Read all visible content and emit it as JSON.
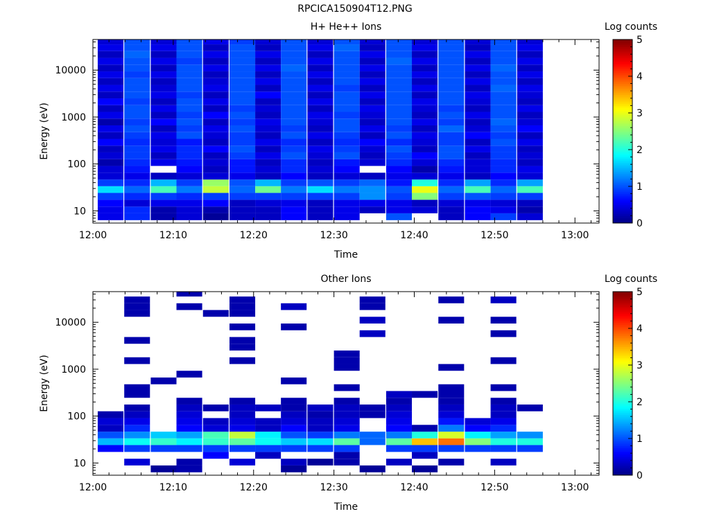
{
  "figure_title": "RPCICA150904T12.PNG",
  "colorbar": {
    "label": "Log counts",
    "ticks": [
      0,
      1,
      2,
      3,
      4,
      5
    ],
    "range": [
      0,
      5
    ]
  },
  "chart_data": [
    {
      "type": "heatmap",
      "title": "H+ He++ Ions",
      "xlabel": "Time",
      "ylabel": "Energy (eV)",
      "x_ticks": [
        "12:00",
        "12:10",
        "12:20",
        "12:30",
        "12:40",
        "12:50",
        "13:00"
      ],
      "xlim_minutes": [
        0,
        63
      ],
      "y_scale": "log",
      "y_ticks": [
        "10",
        "100",
        "1000",
        "10000"
      ],
      "ylim": [
        5.5,
        45000
      ],
      "colorbar_label": "Log counts",
      "time_bins_minutes": [
        2.2,
        5.5,
        8.8,
        12.0,
        15.3,
        18.6,
        21.8,
        25.0,
        28.3,
        31.6,
        34.8,
        38.1,
        41.3,
        44.6,
        47.9,
        51.1,
        54.4
      ],
      "bin_width_minutes": 3.2,
      "energy_bins_eV": [
        7.5,
        10.5,
        14.5,
        20.5,
        28.5,
        39.5,
        55,
        77,
        107,
        150,
        208,
        290,
        404,
        563,
        784,
        1092,
        1520,
        2118,
        2950,
        4108,
        5722,
        7970,
        11100,
        15460,
        21530,
        29990,
        41770
      ],
      "log_counts": [
        [
          0.5,
          0.8,
          0.2,
          0.4,
          0.1,
          0.3,
          0.3,
          0.6,
          0.3,
          0.5,
          null,
          1.0,
          null,
          0.3,
          0.6,
          0.9,
          0.4
        ],
        [
          0.5,
          0.8,
          0.2,
          0.4,
          0.2,
          0.3,
          0.3,
          0.6,
          0.3,
          0.5,
          0.3,
          0.5,
          0.4,
          0.3,
          0.6,
          0.5,
          0.2
        ],
        [
          0.6,
          0.4,
          0.5,
          0.5,
          0.6,
          0.3,
          0.4,
          0.5,
          0.3,
          0.5,
          0.5,
          0.5,
          0.3,
          0.4,
          0.5,
          0.4,
          0.3
        ],
        [
          0.9,
          0.8,
          0.9,
          0.8,
          0.9,
          0.9,
          0.9,
          0.9,
          0.9,
          0.9,
          1.3,
          0.9,
          2.5,
          0.9,
          1.0,
          0.9,
          0.9
        ],
        [
          1.7,
          1.1,
          2.2,
          1.2,
          2.8,
          1.1,
          2.4,
          1.2,
          1.7,
          1.2,
          1.3,
          1.0,
          3.0,
          1.1,
          2.2,
          1.1,
          2.2
        ],
        [
          0.9,
          0.8,
          1.5,
          0.9,
          2.6,
          1.0,
          1.5,
          0.9,
          1.0,
          0.9,
          1.1,
          0.7,
          2.0,
          0.8,
          1.4,
          0.8,
          1.4
        ],
        [
          0.4,
          0.5,
          0.3,
          0.4,
          0.4,
          0.5,
          0.3,
          0.6,
          0.3,
          0.4,
          0.3,
          0.5,
          0.4,
          0.5,
          0.3,
          0.6,
          0.4
        ],
        [
          0.4,
          0.7,
          null,
          0.6,
          0.3,
          0.7,
          0.4,
          0.8,
          0.4,
          0.6,
          null,
          0.6,
          0.2,
          0.7,
          0.4,
          0.8,
          0.5
        ],
        [
          0.2,
          0.8,
          0.5,
          0.7,
          0.4,
          0.7,
          0.3,
          0.8,
          0.3,
          0.7,
          0.4,
          0.8,
          0.4,
          0.8,
          0.4,
          0.8,
          0.3
        ],
        [
          0.4,
          0.9,
          0.3,
          0.8,
          0.3,
          0.9,
          0.5,
          1.0,
          0.4,
          1.0,
          0.3,
          0.9,
          0.6,
          1.0,
          0.3,
          0.9,
          0.4
        ],
        [
          0.3,
          0.9,
          0.5,
          0.8,
          0.6,
          1.0,
          0.3,
          0.9,
          0.5,
          0.9,
          0.4,
          1.0,
          0.3,
          1.0,
          0.5,
          0.9,
          0.3
        ],
        [
          0.6,
          0.8,
          0.4,
          0.7,
          0.3,
          0.9,
          0.5,
          0.8,
          0.3,
          0.8,
          0.6,
          0.8,
          0.4,
          0.9,
          0.3,
          1.0,
          0.5
        ],
        [
          0.3,
          0.9,
          0.5,
          1.0,
          0.4,
          0.9,
          0.3,
          1.0,
          0.5,
          0.9,
          0.3,
          1.0,
          0.5,
          0.9,
          0.6,
          0.9,
          0.3
        ],
        [
          0.5,
          1.0,
          0.3,
          0.9,
          0.5,
          1.0,
          0.4,
          0.9,
          0.3,
          1.0,
          0.5,
          0.9,
          0.3,
          1.1,
          0.4,
          1.0,
          0.6
        ],
        [
          0.2,
          0.9,
          0.6,
          1.0,
          0.3,
          0.9,
          0.5,
          1.0,
          0.4,
          1.0,
          0.3,
          1.0,
          0.5,
          0.9,
          0.3,
          1.1,
          0.4
        ],
        [
          0.5,
          1.0,
          0.3,
          0.9,
          0.6,
          1.0,
          0.3,
          1.0,
          0.5,
          0.9,
          0.4,
          1.0,
          0.3,
          1.0,
          0.5,
          1.0,
          0.3
        ],
        [
          0.3,
          1.0,
          0.5,
          1.0,
          0.3,
          0.9,
          0.4,
          1.0,
          0.3,
          1.0,
          0.5,
          1.0,
          0.4,
          0.9,
          0.3,
          1.0,
          0.5
        ],
        [
          0.6,
          0.9,
          0.3,
          1.0,
          0.5,
          1.0,
          0.3,
          1.0,
          0.5,
          1.0,
          0.3,
          1.0,
          0.5,
          1.0,
          0.4,
          1.0,
          0.3
        ],
        [
          0.3,
          1.0,
          0.5,
          0.9,
          0.3,
          1.0,
          0.6,
          1.0,
          0.3,
          1.0,
          0.5,
          1.0,
          0.3,
          1.0,
          0.5,
          1.0,
          0.4
        ],
        [
          0.5,
          1.0,
          0.4,
          1.0,
          0.5,
          1.0,
          0.3,
          1.0,
          0.5,
          0.9,
          0.3,
          1.0,
          0.5,
          1.0,
          0.3,
          1.1,
          0.5
        ],
        [
          0.3,
          1.0,
          0.3,
          1.0,
          0.4,
          1.0,
          0.5,
          1.0,
          0.3,
          1.0,
          0.5,
          1.0,
          0.3,
          1.0,
          0.5,
          1.0,
          0.3
        ],
        [
          0.5,
          0.9,
          0.5,
          1.0,
          0.3,
          1.0,
          0.3,
          1.0,
          0.5,
          1.0,
          0.3,
          1.0,
          0.5,
          1.0,
          0.3,
          1.0,
          0.5
        ],
        [
          0.3,
          1.0,
          0.3,
          1.0,
          0.5,
          1.0,
          0.5,
          1.1,
          0.3,
          1.0,
          0.5,
          1.0,
          0.3,
          1.0,
          0.5,
          1.1,
          0.3
        ],
        [
          0.5,
          1.0,
          0.5,
          0.9,
          0.3,
          1.0,
          0.3,
          1.0,
          0.5,
          1.0,
          0.3,
          1.1,
          0.5,
          1.0,
          0.3,
          1.0,
          0.5
        ],
        [
          0.3,
          1.1,
          0.3,
          1.0,
          0.5,
          1.0,
          0.5,
          1.0,
          0.3,
          1.0,
          0.5,
          1.0,
          0.3,
          1.0,
          0.5,
          1.0,
          0.3
        ],
        [
          0.5,
          1.0,
          0.5,
          1.0,
          0.3,
          1.0,
          0.3,
          1.0,
          0.5,
          1.1,
          0.3,
          1.0,
          0.5,
          1.0,
          0.3,
          1.0,
          0.5
        ],
        [
          0.4,
          1.0,
          0.4,
          1.0,
          0.5,
          0.9,
          0.4,
          1.0,
          0.4,
          1.0,
          0.4,
          1.0,
          0.4,
          1.0,
          0.4,
          1.0,
          0.4
        ]
      ]
    },
    {
      "type": "heatmap",
      "title": "Other Ions",
      "xlabel": "Time",
      "ylabel": "Energy (eV)",
      "x_ticks": [
        "12:00",
        "12:10",
        "12:20",
        "12:30",
        "12:40",
        "12:50",
        "13:00"
      ],
      "xlim_minutes": [
        0,
        63
      ],
      "y_scale": "log",
      "y_ticks": [
        "10",
        "100",
        "1000",
        "10000"
      ],
      "ylim": [
        5.5,
        45000
      ],
      "colorbar_label": "Log counts",
      "time_bins_minutes": [
        2.2,
        5.5,
        8.8,
        12.0,
        15.3,
        18.6,
        21.8,
        25.0,
        28.3,
        31.6,
        34.8,
        38.1,
        41.3,
        44.6,
        47.9,
        51.1,
        54.4
      ],
      "bin_width_minutes": 3.2,
      "energy_bins_eV": [
        7.5,
        10.5,
        14.5,
        20.5,
        28.5,
        39.5,
        55,
        77,
        107,
        150,
        208,
        290,
        404,
        563,
        784,
        1092,
        1520,
        2118,
        2950,
        4108,
        5722,
        7970,
        11100,
        15460,
        21530,
        29990,
        41770
      ],
      "log_counts": [
        [
          null,
          null,
          0.1,
          0.2,
          null,
          null,
          null,
          0.1,
          null,
          null,
          0.1,
          null,
          0.1,
          null,
          null,
          null,
          null
        ],
        [
          null,
          0.4,
          null,
          0.2,
          null,
          0.4,
          null,
          0.3,
          0.1,
          0.2,
          null,
          0.3,
          null,
          0.2,
          null,
          0.3,
          null
        ],
        [
          null,
          null,
          null,
          null,
          0.6,
          null,
          0.3,
          null,
          null,
          0.2,
          null,
          null,
          0.3,
          null,
          null,
          null,
          null
        ],
        [
          0.6,
          0.9,
          0.9,
          0.9,
          0.9,
          0.9,
          0.9,
          0.9,
          0.9,
          0.9,
          null,
          0.9,
          0.9,
          0.9,
          0.9,
          0.9,
          0.9
        ],
        [
          1.5,
          1.9,
          2.1,
          1.8,
          2.1,
          2.3,
          1.9,
          1.6,
          1.7,
          2.3,
          1.1,
          2.3,
          3.4,
          3.8,
          2.5,
          2.0,
          2.0
        ],
        [
          1.0,
          1.3,
          1.6,
          1.4,
          2.2,
          2.8,
          1.8,
          1.0,
          0.9,
          1.2,
          1.1,
          1.2,
          2.0,
          2.9,
          1.8,
          1.4,
          1.3
        ],
        [
          0.3,
          0.8,
          null,
          0.6,
          0.4,
          0.5,
          0.3,
          0.6,
          0.3,
          0.5,
          null,
          0.6,
          0.2,
          1.2,
          0.6,
          0.8,
          null
        ],
        [
          0.4,
          0.5,
          null,
          0.5,
          0.3,
          0.4,
          0.3,
          0.4,
          0.3,
          0.4,
          null,
          0.5,
          null,
          0.7,
          0.4,
          0.5,
          null
        ],
        [
          0.2,
          0.3,
          null,
          0.4,
          null,
          0.3,
          null,
          0.3,
          0.2,
          0.3,
          0.2,
          0.4,
          null,
          0.4,
          null,
          0.3,
          null
        ],
        [
          null,
          0.2,
          null,
          0.3,
          0.2,
          0.3,
          0.3,
          0.2,
          0.3,
          0.3,
          0.2,
          0.3,
          null,
          0.3,
          null,
          0.3,
          0.2
        ],
        [
          null,
          null,
          null,
          0.2,
          null,
          0.2,
          null,
          0.2,
          null,
          0.2,
          null,
          0.2,
          null,
          0.2,
          null,
          0.2,
          null
        ],
        [
          null,
          0.2,
          null,
          null,
          null,
          null,
          null,
          null,
          null,
          null,
          null,
          0.3,
          0.2,
          0.2,
          null,
          null,
          null
        ],
        [
          null,
          0.2,
          null,
          null,
          null,
          null,
          null,
          null,
          null,
          0.2,
          null,
          null,
          null,
          0.2,
          null,
          0.2,
          null
        ],
        [
          null,
          null,
          0.2,
          null,
          null,
          null,
          null,
          0.2,
          null,
          null,
          null,
          null,
          null,
          null,
          null,
          null,
          null
        ],
        [
          null,
          null,
          null,
          0.2,
          null,
          null,
          null,
          null,
          null,
          null,
          null,
          null,
          null,
          null,
          null,
          null,
          null
        ],
        [
          null,
          null,
          null,
          null,
          null,
          null,
          null,
          null,
          null,
          0.2,
          null,
          null,
          null,
          0.2,
          null,
          null,
          null
        ],
        [
          null,
          0.2,
          null,
          null,
          null,
          0.2,
          null,
          null,
          null,
          0.2,
          null,
          null,
          null,
          null,
          null,
          0.2,
          null
        ],
        [
          null,
          null,
          null,
          null,
          null,
          null,
          null,
          null,
          null,
          0.2,
          null,
          null,
          null,
          null,
          null,
          null,
          null
        ],
        [
          null,
          null,
          null,
          null,
          null,
          0.2,
          null,
          null,
          null,
          null,
          null,
          null,
          null,
          null,
          null,
          null,
          null
        ],
        [
          null,
          0.2,
          null,
          null,
          null,
          0.2,
          null,
          null,
          null,
          null,
          null,
          null,
          null,
          null,
          null,
          null,
          null
        ],
        [
          null,
          null,
          null,
          null,
          null,
          null,
          null,
          null,
          null,
          null,
          0.3,
          null,
          null,
          null,
          null,
          0.2,
          null
        ],
        [
          null,
          null,
          null,
          null,
          null,
          0.2,
          null,
          0.2,
          null,
          null,
          null,
          null,
          null,
          null,
          null,
          null,
          null
        ],
        [
          null,
          null,
          null,
          null,
          null,
          null,
          null,
          null,
          null,
          null,
          0.3,
          null,
          null,
          0.2,
          null,
          0.2,
          null
        ],
        [
          null,
          0.2,
          null,
          null,
          0.2,
          0.2,
          null,
          null,
          null,
          null,
          null,
          null,
          null,
          null,
          null,
          null,
          null
        ],
        [
          null,
          0.2,
          null,
          0.2,
          null,
          0.2,
          null,
          0.3,
          null,
          null,
          0.2,
          null,
          null,
          null,
          null,
          null,
          null
        ],
        [
          null,
          0.2,
          null,
          null,
          null,
          0.2,
          null,
          null,
          null,
          null,
          0.2,
          null,
          null,
          0.2,
          null,
          0.3,
          null
        ],
        [
          null,
          null,
          null,
          0.2,
          null,
          null,
          null,
          null,
          null,
          null,
          null,
          null,
          null,
          null,
          null,
          null,
          null
        ]
      ]
    }
  ]
}
